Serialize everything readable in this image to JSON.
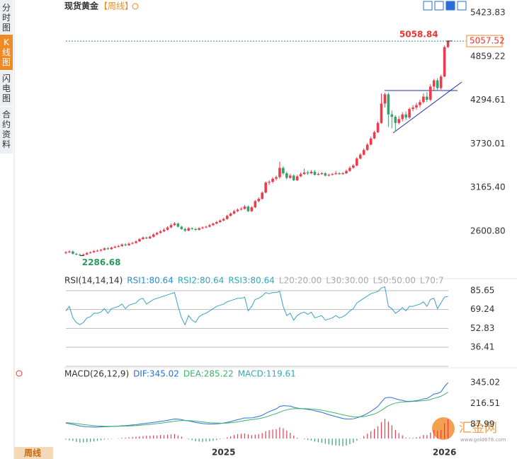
{
  "tabs": [
    "分时图",
    "K线图",
    "闪电图",
    "合约资料"
  ],
  "header": {
    "title": "现货黄金",
    "period": "【周线】",
    "bottom_tab": "周线",
    "watermark": "汇金网",
    "watermark_url": "www.gold678.com"
  },
  "chart_data": [
    {
      "type": "candlestick",
      "ylim": [
        2071,
        5423.83
      ],
      "yticks": [
        5423.83,
        4859.22,
        4294.61,
        3730.01,
        {
          "value": 3165.4,
          "label": "3165.40"
        },
        {
          "value": 2600.8,
          "label": "2600.80"
        }
      ],
      "x_labels": [
        "2025",
        "2026"
      ],
      "high_label": "5058.84",
      "low_label": "2286.68",
      "last_label": "5057.52",
      "up_color": "#ee3b4c",
      "down_color": "#33a36c",
      "open": [
        2320,
        2330,
        2340,
        2310,
        2300,
        2295,
        2300,
        2320,
        2330,
        2345,
        2350,
        2360,
        2380,
        2370,
        2390,
        2400,
        2410,
        2430,
        2420,
        2440,
        2450,
        2470,
        2500,
        2520,
        2510,
        2530,
        2560,
        2580,
        2600,
        2620,
        2650,
        2680,
        2700,
        2660,
        2630,
        2610,
        2640,
        2630,
        2620,
        2640,
        2650,
        2660,
        2680,
        2700,
        2720,
        2740,
        2760,
        2800,
        2830,
        2860,
        2880,
        2890,
        2920,
        2860,
        2910,
        2990,
        3020,
        3100,
        3230,
        3240,
        3280,
        3300,
        3420,
        3350,
        3290,
        3320,
        3260,
        3310,
        3340,
        3360,
        3350,
        3370,
        3330,
        3340,
        3350,
        3320,
        3330,
        3340,
        3350,
        3340,
        3350,
        3380,
        3420,
        3450,
        3540,
        3590,
        3650,
        3720,
        3800,
        3880,
        4000,
        4250,
        4370,
        4110,
        4080,
        4000,
        4050,
        4110,
        4070,
        4180,
        4200,
        4230,
        4270,
        4340,
        4300,
        4470,
        4550,
        4450,
        4600,
        4980
      ],
      "high": [
        2345,
        2355,
        2352,
        2322,
        2312,
        2315,
        2332,
        2342,
        2358,
        2365,
        2375,
        2392,
        2395,
        2402,
        2415,
        2425,
        2442,
        2445,
        2455,
        2466,
        2485,
        2512,
        2535,
        2532,
        2545,
        2575,
        2595,
        2615,
        2640,
        2665,
        2700,
        2720,
        2712,
        2672,
        2645,
        2655,
        2652,
        2645,
        2652,
        2665,
        2672,
        2695,
        2712,
        2735,
        2755,
        2775,
        2815,
        2845,
        2878,
        2895,
        2910,
        2940,
        2935,
        2925,
        3005,
        3040,
        3115,
        3245,
        3260,
        3300,
        3320,
        3500,
        3440,
        3370,
        3345,
        3335,
        3330,
        3360,
        3410,
        3380,
        3390,
        3390,
        3360,
        3365,
        3365,
        3345,
        3355,
        3380,
        3365,
        3365,
        3400,
        3440,
        3470,
        3560,
        3610,
        3670,
        3740,
        3820,
        3900,
        4020,
        4380,
        4390,
        4390,
        4160,
        4100,
        4090,
        4140,
        4150,
        4200,
        4230,
        4260,
        4300,
        4380,
        4400,
        4500,
        4570,
        4580,
        4620,
        5000,
        5058.84
      ],
      "low": [
        2305,
        2318,
        2300,
        2292,
        2286.68,
        2290,
        2295,
        2312,
        2322,
        2335,
        2340,
        2352,
        2360,
        2362,
        2380,
        2392,
        2400,
        2408,
        2412,
        2430,
        2440,
        2462,
        2490,
        2498,
        2500,
        2520,
        2548,
        2570,
        2590,
        2610,
        2640,
        2670,
        2650,
        2620,
        2590,
        2600,
        2618,
        2605,
        2610,
        2630,
        2640,
        2650,
        2670,
        2690,
        2710,
        2730,
        2750,
        2790,
        2820,
        2850,
        2870,
        2880,
        2850,
        2850,
        2900,
        2975,
        3010,
        3090,
        3200,
        3220,
        3260,
        3280,
        3330,
        3270,
        3280,
        3250,
        3250,
        3300,
        3330,
        3330,
        3340,
        3320,
        3320,
        3330,
        3310,
        3310,
        3320,
        3330,
        3330,
        3330,
        3340,
        3370,
        3410,
        3440,
        3530,
        3580,
        3640,
        3710,
        3790,
        3870,
        3990,
        4200,
        3950,
        3930,
        3890,
        3980,
        4020,
        4040,
        4050,
        4150,
        4170,
        4200,
        4250,
        4270,
        4280,
        4420,
        4420,
        4430,
        4590,
        4970
      ],
      "close": [
        2330,
        2340,
        2310,
        2300,
        2295,
        2300,
        2320,
        2330,
        2345,
        2350,
        2360,
        2380,
        2370,
        2390,
        2400,
        2410,
        2430,
        2420,
        2440,
        2450,
        2470,
        2500,
        2520,
        2510,
        2530,
        2560,
        2580,
        2600,
        2620,
        2650,
        2680,
        2700,
        2660,
        2630,
        2610,
        2640,
        2630,
        2620,
        2640,
        2650,
        2660,
        2680,
        2700,
        2720,
        2740,
        2760,
        2800,
        2830,
        2860,
        2880,
        2890,
        2920,
        2860,
        2910,
        2990,
        3020,
        3100,
        3230,
        3240,
        3280,
        3300,
        3420,
        3350,
        3290,
        3320,
        3260,
        3310,
        3340,
        3360,
        3350,
        3370,
        3330,
        3340,
        3350,
        3320,
        3330,
        3340,
        3350,
        3340,
        3350,
        3380,
        3420,
        3450,
        3540,
        3590,
        3650,
        3720,
        3800,
        3880,
        4000,
        4250,
        4370,
        4110,
        4080,
        4000,
        4050,
        4110,
        4070,
        4180,
        4200,
        4230,
        4270,
        4340,
        4300,
        4470,
        4550,
        4450,
        4600,
        4980,
        5057.52
      ]
    },
    {
      "type": "line",
      "ylim": [
        18.56,
        93.65
      ],
      "yticks": [
        85.65,
        69.24,
        52.83,
        36.41
      ],
      "header": [
        "RSI(14,14,14)",
        "RSI1:80.64",
        "RSI2:80.64",
        "RSI3:80.64",
        "L20:20.00",
        "L30:30.00",
        "L50:50.00",
        "L70:7"
      ],
      "header_colors": [
        "#333333",
        "#2a8fd6",
        "#35a9b8",
        "#35a9b8",
        "#aaaaaa",
        "#aaaaaa",
        "#aaaaaa",
        "#aaaaaa"
      ],
      "series": [
        {
          "color": "#3a9fc9",
          "values": [
            68,
            72,
            62,
            58,
            56,
            58,
            62,
            63,
            66,
            66,
            67,
            70,
            66,
            70,
            71,
            72,
            74,
            70,
            73,
            74,
            75,
            78,
            79,
            74,
            76,
            78,
            79,
            80,
            81,
            82,
            83,
            84,
            72,
            62,
            56,
            64,
            60,
            58,
            63,
            65,
            66,
            68,
            70,
            72,
            73,
            74,
            76,
            77,
            78,
            79,
            79,
            80,
            68,
            72,
            78,
            79,
            81,
            84,
            83,
            84,
            84,
            85,
            72,
            64,
            66,
            60,
            64,
            66,
            67,
            65,
            67,
            62,
            63,
            64,
            60,
            61,
            62,
            64,
            62,
            63,
            65,
            68,
            70,
            75,
            77,
            79,
            81,
            83,
            84,
            85,
            88,
            89,
            72,
            70,
            66,
            68,
            71,
            68,
            72,
            72,
            73,
            74,
            76,
            72,
            78,
            79,
            70,
            75,
            80,
            80.64
          ]
        }
      ]
    },
    {
      "type": "macd",
      "ylim": [
        -34,
        414.7
      ],
      "yticks": [
        345.02,
        216.51,
        87.99
      ],
      "header": [
        "MACD(26,12,9)",
        "DIF:345.02",
        "DEA:285.22",
        "MACD:119.61"
      ],
      "header_colors": [
        "#333333",
        "#2a6fd6",
        "#3bb36a",
        "#35a9b8"
      ],
      "up_color": "#ee3b4c",
      "down_color": "#33a36c",
      "series": [
        {
          "color": "#2a6fd6",
          "values": [
            95,
            92,
            88,
            83,
            78,
            75,
            73,
            72,
            71,
            71,
            72,
            73,
            74,
            75,
            76,
            77,
            79,
            80,
            82,
            84,
            86,
            89,
            92,
            95,
            97,
            100,
            103,
            106,
            109,
            113,
            117,
            121,
            120,
            117,
            112,
            109,
            105,
            100,
            96,
            93,
            91,
            90,
            90,
            91,
            93,
            96,
            100,
            105,
            111,
            117,
            122,
            127,
            127,
            128,
            132,
            137,
            144,
            156,
            166,
            175,
            183,
            198,
            203,
            202,
            200,
            193,
            188,
            185,
            183,
            180,
            177,
            172,
            167,
            162,
            155,
            148,
            142,
            136,
            130,
            124,
            121,
            121,
            122,
            128,
            135,
            144,
            155,
            168,
            182,
            199,
            225,
            250,
            254,
            253,
            246,
            240,
            236,
            230,
            230,
            231,
            234,
            238,
            245,
            247,
            260,
            275,
            278,
            288,
            320,
            345.02
          ]
        },
        {
          "color": "#3bb36a",
          "values": [
            98,
            97,
            95,
            93,
            90,
            87,
            84,
            82,
            80,
            78,
            77,
            76,
            76,
            76,
            76,
            76,
            77,
            77,
            78,
            79,
            80,
            82,
            84,
            86,
            88,
            90,
            93,
            95,
            98,
            101,
            104,
            107,
            110,
            111,
            112,
            111,
            110,
            108,
            105,
            103,
            100,
            98,
            97,
            96,
            95,
            95,
            96,
            98,
            100,
            103,
            107,
            111,
            114,
            117,
            120,
            123,
            127,
            133,
            140,
            147,
            154,
            163,
            171,
            177,
            182,
            184,
            185,
            185,
            185,
            184,
            183,
            181,
            178,
            175,
            171,
            166,
            162,
            157,
            152,
            147,
            142,
            138,
            135,
            134,
            134,
            136,
            140,
            145,
            152,
            161,
            174,
            189,
            202,
            212,
            219,
            223,
            226,
            227,
            228,
            229,
            230,
            232,
            234,
            236,
            241,
            248,
            254,
            261,
            273,
            285.22
          ]
        }
      ],
      "histogram": [
        -6,
        -10,
        -14,
        -20,
        -24,
        -24,
        -22,
        -20,
        -18,
        -14,
        -10,
        -6,
        -4,
        -2,
        0,
        2,
        4,
        6,
        8,
        10,
        12,
        14,
        16,
        18,
        18,
        20,
        20,
        22,
        22,
        24,
        26,
        28,
        20,
        12,
        0,
        -4,
        -10,
        -16,
        -18,
        -20,
        -18,
        -16,
        -14,
        -10,
        -4,
        2,
        8,
        14,
        22,
        28,
        30,
        32,
        26,
        22,
        24,
        28,
        34,
        46,
        52,
        56,
        58,
        70,
        64,
        50,
        36,
        18,
        6,
        0,
        -4,
        -8,
        -12,
        -18,
        -22,
        -26,
        -32,
        -36,
        -40,
        -42,
        -44,
        -46,
        -42,
        -34,
        -26,
        -12,
        2,
        16,
        30,
        46,
        60,
        76,
        102,
        122,
        104,
        82,
        54,
        34,
        20,
        6,
        4,
        4,
        8,
        12,
        22,
        22,
        38,
        54,
        48,
        54,
        94,
        119.61
      ]
    }
  ]
}
